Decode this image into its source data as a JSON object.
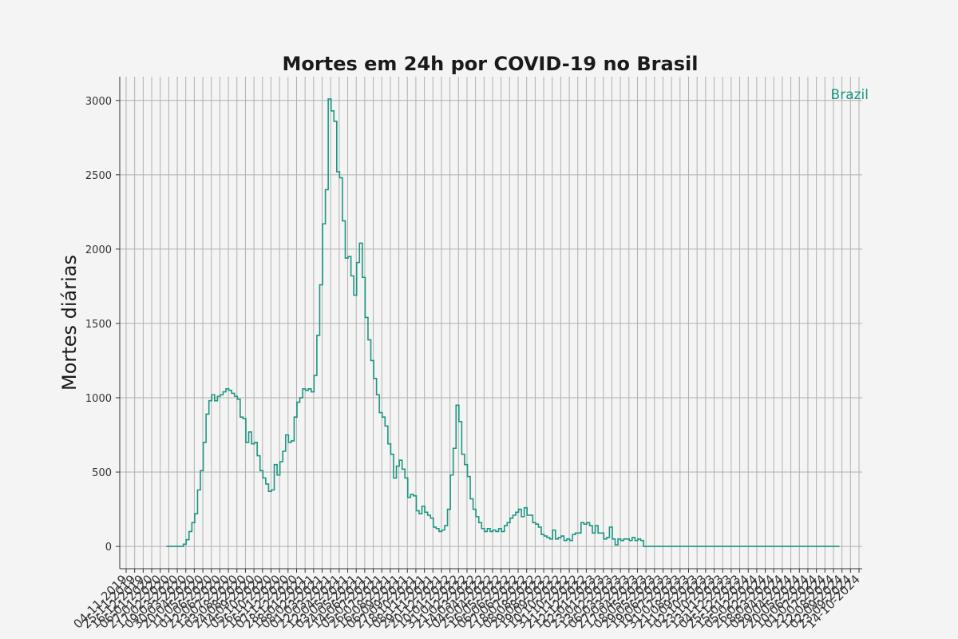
{
  "chart_data": {
    "type": "line",
    "title": "Mortes em 24h por COVID-19 no Brasil",
    "ylabel": "Mortes diárias",
    "xlabel": "",
    "ylim": [
      -150,
      3160
    ],
    "yticks": [
      0,
      500,
      1000,
      1500,
      2000,
      2500,
      3000
    ],
    "grid": true,
    "legend": "top-right",
    "x_ticks": [
      "04-11-2019",
      "25-11-2019",
      "16-12-2019",
      "06-01-2020",
      "27-01-2020",
      "17-02-2020",
      "09-03-2020",
      "30-03-2020",
      "20-04-2020",
      "11-05-2020",
      "01-06-2020",
      "22-06-2020",
      "13-07-2020",
      "03-08-2020",
      "24-08-2020",
      "14-09-2020",
      "05-10-2020",
      "26-10-2020",
      "16-11-2020",
      "07-12-2020",
      "28-12-2020",
      "18-01-2021",
      "08-02-2021",
      "01-03-2021",
      "22-03-2021",
      "12-04-2021",
      "03-05-2021",
      "24-05-2021",
      "14-06-2021",
      "05-07-2021",
      "26-07-2021",
      "16-08-2021",
      "06-09-2021",
      "27-09-2021",
      "18-10-2021",
      "08-11-2021",
      "29-11-2021",
      "20-12-2021",
      "10-01-2022",
      "31-01-2022",
      "21-02-2022",
      "14-03-2022",
      "04-04-2022",
      "25-04-2022",
      "16-05-2022",
      "06-06-2022",
      "27-06-2022",
      "18-07-2022",
      "08-08-2022",
      "29-08-2022",
      "19-09-2022",
      "10-10-2022",
      "31-10-2022",
      "21-11-2022",
      "12-12-2022",
      "02-01-2023",
      "23-01-2023",
      "13-02-2023",
      "06-03-2023",
      "27-03-2023",
      "17-04-2023",
      "08-05-2023",
      "29-05-2023",
      "19-06-2023",
      "10-07-2023",
      "31-07-2023",
      "21-08-2023",
      "11-09-2023",
      "02-10-2023",
      "23-10-2023",
      "13-11-2023",
      "04-12-2023",
      "25-12-2023",
      "15-01-2024",
      "05-02-2024",
      "26-02-2024",
      "18-03-2024",
      "08-04-2024",
      "29-04-2024",
      "20-05-2024",
      "10-06-2024",
      "01-07-2024",
      "22-07-2024",
      "12-08-2024",
      "02-09-2024",
      "23-09-2024",
      "14-10-2024"
    ],
    "series": [
      {
        "name": "Brazil",
        "color": "#1a9682",
        "x_start": "11-02-2020",
        "x_step_days": 7,
        "y": [
          0,
          0,
          0,
          0,
          0,
          0,
          15,
          45,
          100,
          160,
          220,
          380,
          510,
          700,
          890,
          980,
          1020,
          980,
          1010,
          1020,
          1040,
          1060,
          1050,
          1030,
          1010,
          990,
          870,
          860,
          700,
          770,
          690,
          700,
          610,
          510,
          460,
          420,
          370,
          380,
          550,
          480,
          570,
          640,
          750,
          700,
          710,
          870,
          970,
          1000,
          1060,
          1050,
          1060,
          1040,
          1150,
          1420,
          1760,
          2170,
          2400,
          3010,
          2930,
          2860,
          2520,
          2480,
          2190,
          1940,
          1950,
          1820,
          1690,
          1910,
          2040,
          1810,
          1540,
          1390,
          1250,
          1130,
          1020,
          900,
          870,
          810,
          690,
          620,
          460,
          540,
          580,
          520,
          460,
          330,
          350,
          340,
          240,
          220,
          270,
          230,
          210,
          190,
          130,
          120,
          100,
          110,
          140,
          250,
          480,
          660,
          950,
          840,
          620,
          550,
          470,
          320,
          250,
          200,
          160,
          120,
          100,
          120,
          100,
          110,
          100,
          120,
          100,
          140,
          160,
          190,
          210,
          230,
          250,
          200,
          260,
          210,
          210,
          160,
          150,
          130,
          80,
          70,
          60,
          50,
          110,
          50,
          60,
          70,
          40,
          50,
          40,
          80,
          90,
          90,
          160,
          150,
          160,
          140,
          90,
          140,
          90,
          90,
          50,
          60,
          130,
          50,
          10,
          50,
          40,
          50,
          50,
          40,
          60,
          40,
          50,
          40,
          0,
          0,
          0,
          0,
          0,
          0,
          0,
          0,
          0,
          0,
          0,
          0,
          0,
          0,
          0,
          0,
          0,
          0,
          0,
          0,
          0,
          0,
          0,
          0,
          0,
          0,
          0,
          0,
          0,
          0,
          0,
          0,
          0,
          0,
          0,
          0,
          0,
          0,
          0,
          0,
          0,
          0,
          0,
          0,
          0,
          0,
          0,
          0,
          0,
          0,
          0,
          0,
          0,
          0,
          0,
          0,
          0,
          0,
          0,
          0,
          0,
          0,
          0,
          0,
          0,
          0,
          0,
          0,
          0
        ]
      }
    ]
  }
}
